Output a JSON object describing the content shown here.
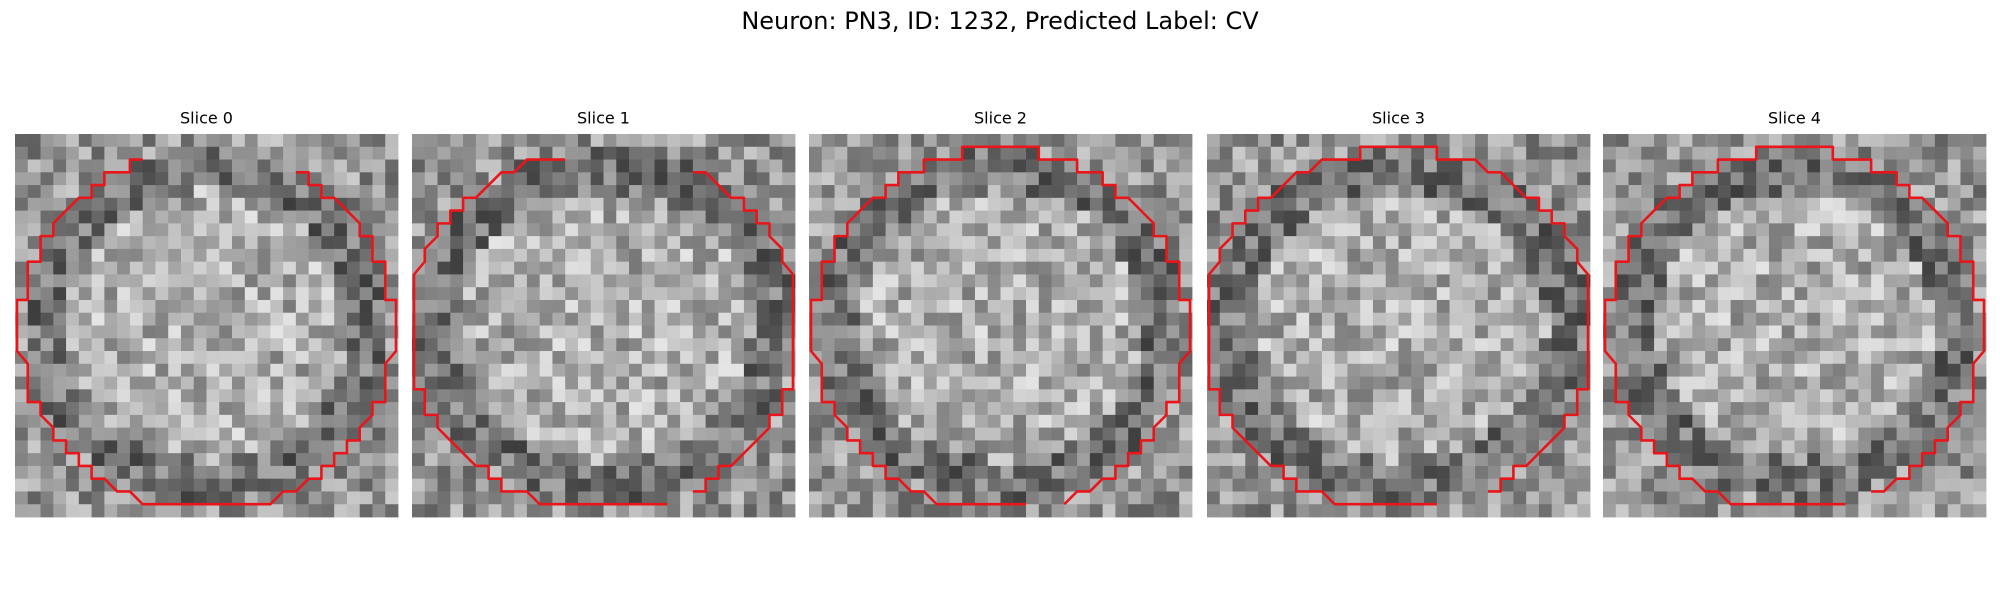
{
  "title": "Neuron: PN3, ID: 1232, Predicted Label: CV",
  "panels": [
    {
      "title": "Slice 0"
    },
    {
      "title": "Slice 1"
    },
    {
      "title": "Slice 2"
    },
    {
      "title": "Slice 3"
    },
    {
      "title": "Slice 4"
    }
  ]
}
